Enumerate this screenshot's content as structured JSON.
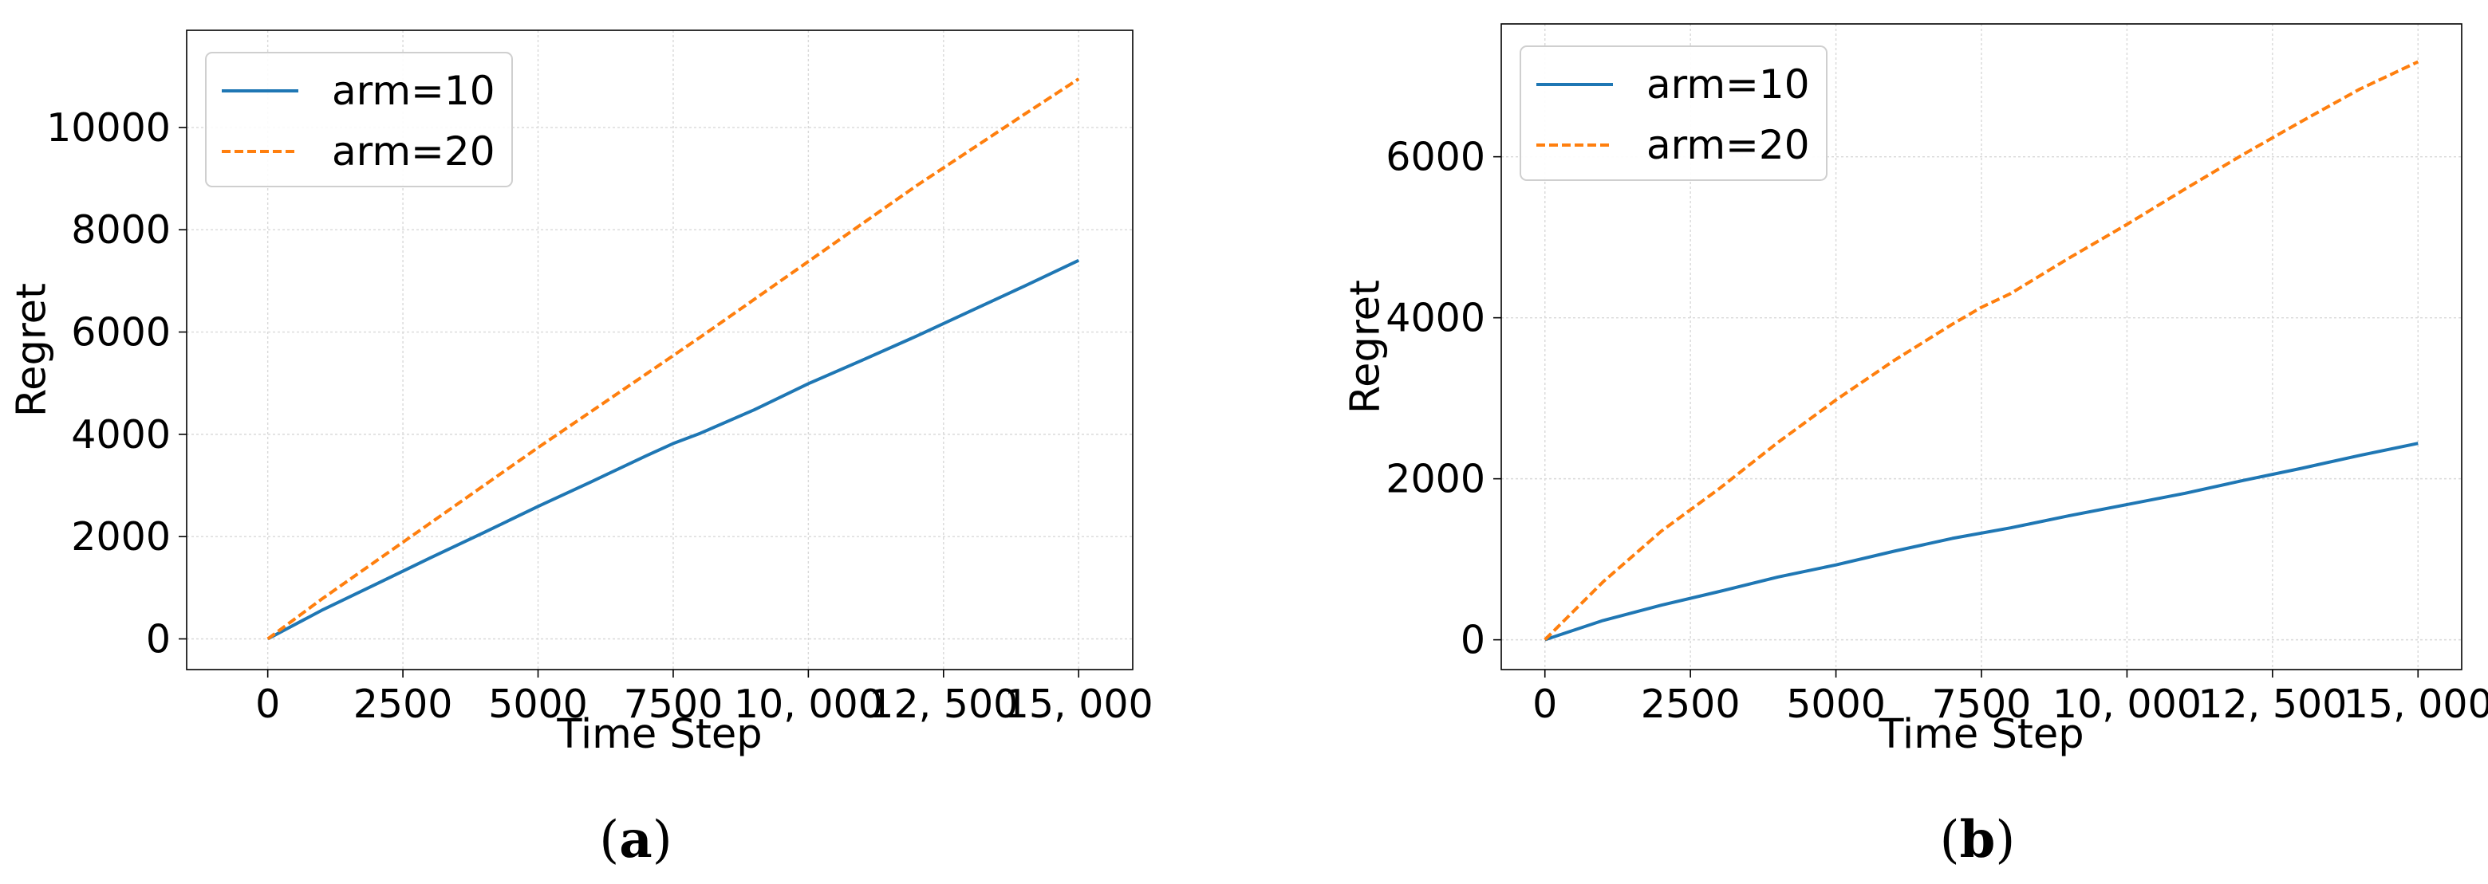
{
  "chart_data": [
    {
      "type": "line",
      "panel_label": "a",
      "xlabel": "Time Step",
      "ylabel": "Regret",
      "xlim": [
        -1500,
        16000
      ],
      "ylim": [
        -600,
        11900
      ],
      "x_ticks": [
        0,
        2500,
        5000,
        7500,
        10000,
        12500,
        15000
      ],
      "x_tick_labels": [
        "0",
        "2500",
        "5000",
        "7500",
        "10, 000",
        "12, 500",
        "15, 000"
      ],
      "y_ticks": [
        0,
        2000,
        4000,
        6000,
        8000,
        10000
      ],
      "y_tick_labels": [
        "0",
        "2000",
        "4000",
        "6000",
        "8000",
        "10000"
      ],
      "grid": true,
      "legend_position": "top-left",
      "series": [
        {
          "name": "arm=10",
          "color": "#1f77b4",
          "style": "solid",
          "x": [
            0,
            1000,
            2000,
            3000,
            4000,
            5000,
            6000,
            7000,
            7500,
            8000,
            9000,
            10000,
            11000,
            12000,
            13000,
            14000,
            15000
          ],
          "y": [
            0,
            560,
            1070,
            1580,
            2080,
            2590,
            3080,
            3580,
            3820,
            4020,
            4480,
            4990,
            5450,
            5920,
            6410,
            6900,
            7400
          ]
        },
        {
          "name": "arm=20",
          "color": "#ff7f0e",
          "style": "dashed",
          "x": [
            0,
            1000,
            2000,
            3000,
            4000,
            5000,
            6000,
            7000,
            8000,
            9000,
            10000,
            11000,
            12000,
            13000,
            14000,
            15000
          ],
          "y": [
            0,
            780,
            1520,
            2260,
            3000,
            3740,
            4460,
            5180,
            5900,
            6640,
            7380,
            8120,
            8860,
            9560,
            10260,
            10950
          ]
        }
      ]
    },
    {
      "type": "line",
      "panel_label": "b",
      "xlabel": "Time Step",
      "ylabel": "Regret",
      "xlim": [
        -750,
        15750
      ],
      "ylim": [
        -370,
        7650
      ],
      "x_ticks": [
        0,
        2500,
        5000,
        7500,
        10000,
        12500,
        15000
      ],
      "x_tick_labels": [
        "0",
        "2500",
        "5000",
        "7500",
        "10, 000",
        "12, 500",
        "15, 000"
      ],
      "y_ticks": [
        0,
        2000,
        4000,
        6000
      ],
      "y_tick_labels": [
        "0",
        "2000",
        "4000",
        "6000"
      ],
      "grid": true,
      "legend_position": "top-left",
      "series": [
        {
          "name": "arm=10",
          "color": "#1f77b4",
          "style": "solid",
          "x": [
            0,
            1000,
            2000,
            3000,
            4000,
            5000,
            6000,
            7000,
            8000,
            9000,
            10000,
            11000,
            12000,
            13000,
            14000,
            15000
          ],
          "y": [
            0,
            240,
            430,
            600,
            780,
            930,
            1100,
            1260,
            1390,
            1540,
            1680,
            1820,
            1980,
            2130,
            2290,
            2440
          ]
        },
        {
          "name": "arm=20",
          "color": "#ff7f0e",
          "style": "dashed",
          "x": [
            0,
            1000,
            2000,
            3000,
            4000,
            5000,
            6000,
            7000,
            7500,
            8000,
            9000,
            10000,
            11000,
            12000,
            13000,
            14000,
            15000
          ],
          "y": [
            0,
            720,
            1350,
            1880,
            2450,
            2980,
            3470,
            3920,
            4130,
            4300,
            4740,
            5160,
            5600,
            6030,
            6440,
            6840,
            7180
          ]
        }
      ]
    }
  ]
}
